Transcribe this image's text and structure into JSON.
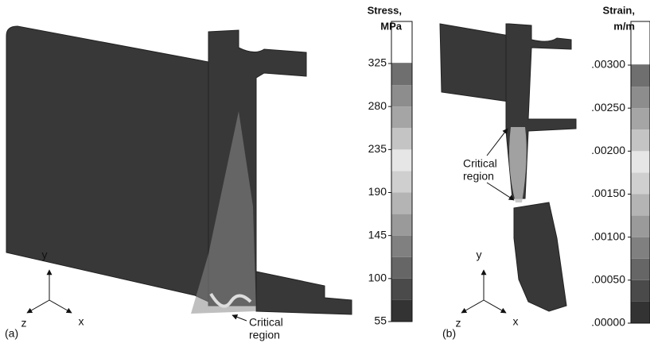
{
  "panels": [
    {
      "label": "(a)",
      "legend": {
        "title": [
          "Stress,",
          "MPa"
        ],
        "ticks": [
          55,
          100,
          145,
          190,
          235,
          280,
          325
        ]
      },
      "axes": [
        "y",
        "z",
        "x"
      ],
      "annotation": [
        "Critical",
        "region"
      ]
    },
    {
      "label": "(b)",
      "legend": {
        "title": [
          "Strain,",
          "m/m"
        ],
        "ticks": [
          {
            "value": 0,
            "label": ".00000"
          },
          {
            "value": 0.0005,
            "label": ".00050"
          },
          {
            "value": 0.001,
            "label": ".00100"
          },
          {
            "value": 0.0015,
            "label": ".00150"
          },
          {
            "value": 0.002,
            "label": ".00200"
          },
          {
            "value": 0.0025,
            "label": ".00250"
          },
          {
            "value": 0.003,
            "label": ".00300"
          }
        ]
      },
      "axes": [
        "y",
        "z",
        "x"
      ],
      "annotation": [
        "Critical",
        "region"
      ]
    }
  ]
}
